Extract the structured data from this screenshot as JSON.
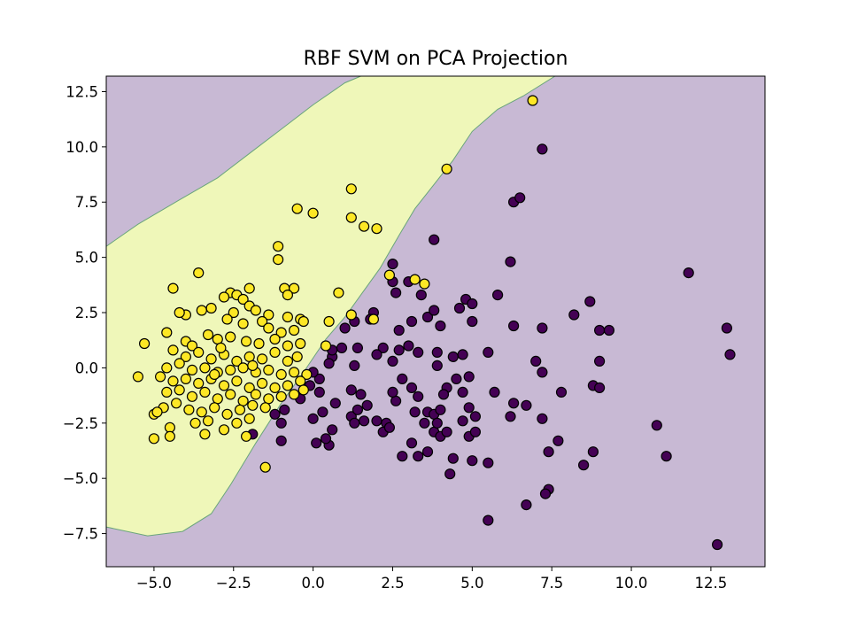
{
  "chart_data": {
    "type": "scatter",
    "title": "RBF SVM on PCA Projection",
    "xlabel": "",
    "ylabel": "",
    "xlim": [
      -6.5,
      14.2
    ],
    "ylim": [
      -9.0,
      13.2
    ],
    "x_ticks": [
      -5.0,
      -2.5,
      0.0,
      2.5,
      5.0,
      7.5,
      10.0,
      12.5
    ],
    "x_tick_labels": [
      "−5.0",
      "−2.5",
      "0.0",
      "2.5",
      "5.0",
      "7.5",
      "10.0",
      "12.5"
    ],
    "y_ticks": [
      -7.5,
      -5.0,
      -2.5,
      0.0,
      2.5,
      5.0,
      7.5,
      10.0,
      12.5
    ],
    "y_tick_labels": [
      "−7.5",
      "−5.0",
      "−2.5",
      "0.0",
      "2.5",
      "5.0",
      "7.5",
      "10.0",
      "12.5"
    ],
    "grid": false,
    "legend": "none",
    "colors": {
      "class_0": "#440154",
      "class_1": "#fde725",
      "region_0": "#c8b9d4",
      "region_1": "#eff7b9",
      "boundary": "#6aa57b",
      "marker_edge": "#000000"
    },
    "decision_boundary": [
      [
        -6.5,
        5.5
      ],
      [
        -5.5,
        6.5
      ],
      [
        -4.2,
        7.6
      ],
      [
        -3.0,
        8.6
      ],
      [
        -2.0,
        9.7
      ],
      [
        -1.0,
        10.8
      ],
      [
        0.0,
        11.9
      ],
      [
        1.0,
        12.9
      ],
      [
        1.5,
        13.2
      ],
      [
        7.6,
        13.2
      ],
      [
        6.6,
        12.3
      ],
      [
        5.8,
        11.7
      ],
      [
        5.0,
        10.7
      ],
      [
        4.4,
        9.4
      ],
      [
        3.8,
        8.3
      ],
      [
        3.2,
        7.2
      ],
      [
        2.7,
        6.0
      ],
      [
        2.1,
        4.5
      ],
      [
        1.5,
        3.3
      ],
      [
        1.0,
        2.3
      ],
      [
        0.4,
        1.3
      ],
      [
        -0.3,
        -0.2
      ],
      [
        -1.0,
        -1.6
      ],
      [
        -1.8,
        -3.4
      ],
      [
        -2.6,
        -5.3
      ],
      [
        -3.2,
        -6.6
      ],
      [
        -4.1,
        -7.4
      ],
      [
        -5.2,
        -7.6
      ],
      [
        -6.5,
        -7.2
      ]
    ],
    "series": [
      {
        "values": [
          [
            7.2,
            9.9
          ],
          [
            6.3,
            7.5
          ],
          [
            6.5,
            7.7
          ],
          [
            3.8,
            5.8
          ],
          [
            6.2,
            4.8
          ],
          [
            11.8,
            4.3
          ],
          [
            2.5,
            4.7
          ],
          [
            4.8,
            3.1
          ],
          [
            5.0,
            2.9
          ],
          [
            5.8,
            3.3
          ],
          [
            8.2,
            2.4
          ],
          [
            8.7,
            3.0
          ],
          [
            13.0,
            1.8
          ],
          [
            13.1,
            0.6
          ],
          [
            9.0,
            1.7
          ],
          [
            9.3,
            1.7
          ],
          [
            7.2,
            1.8
          ],
          [
            6.3,
            1.9
          ],
          [
            12.7,
            -8.0
          ],
          [
            10.8,
            -2.6
          ],
          [
            11.1,
            -4.0
          ],
          [
            8.5,
            -4.4
          ],
          [
            8.8,
            -3.8
          ],
          [
            7.4,
            -3.8
          ],
          [
            7.7,
            -3.3
          ],
          [
            7.4,
            -5.5
          ],
          [
            7.3,
            -5.7
          ],
          [
            6.7,
            -6.2
          ],
          [
            5.5,
            -6.9
          ],
          [
            5.5,
            -4.3
          ],
          [
            5.0,
            -4.2
          ],
          [
            4.3,
            -4.8
          ],
          [
            4.4,
            -4.1
          ],
          [
            2.8,
            -4.0
          ],
          [
            3.3,
            -4.0
          ],
          [
            3.6,
            -3.8
          ],
          [
            3.1,
            -3.4
          ],
          [
            3.8,
            -2.9
          ],
          [
            4.0,
            -3.1
          ],
          [
            4.9,
            -3.1
          ],
          [
            5.1,
            -2.9
          ],
          [
            5.1,
            -2.2
          ],
          [
            6.2,
            -2.2
          ],
          [
            6.3,
            -1.6
          ],
          [
            6.7,
            -1.7
          ],
          [
            7.2,
            -2.3
          ],
          [
            5.7,
            -1.1
          ],
          [
            7.8,
            -1.1
          ],
          [
            8.8,
            -0.8
          ],
          [
            9.0,
            -0.9
          ],
          [
            9.0,
            0.3
          ],
          [
            7.0,
            0.3
          ],
          [
            7.2,
            -0.2
          ],
          [
            5.5,
            0.7
          ],
          [
            4.7,
            0.6
          ],
          [
            3.9,
            0.7
          ],
          [
            3.9,
            0.1
          ],
          [
            4.4,
            0.5
          ],
          [
            4.9,
            -0.4
          ],
          [
            4.2,
            -0.9
          ],
          [
            3.3,
            0.7
          ],
          [
            2.7,
            0.8
          ],
          [
            2.5,
            0.3
          ],
          [
            2.2,
            0.9
          ],
          [
            3.0,
            1.0
          ],
          [
            2.7,
            1.7
          ],
          [
            3.1,
            2.1
          ],
          [
            3.6,
            2.3
          ],
          [
            4.0,
            1.9
          ],
          [
            4.6,
            2.7
          ],
          [
            5.0,
            2.1
          ],
          [
            3.8,
            2.6
          ],
          [
            3.4,
            3.3
          ],
          [
            2.6,
            3.4
          ],
          [
            3.0,
            3.9
          ],
          [
            2.5,
            3.9
          ],
          [
            1.9,
            2.5
          ],
          [
            1.8,
            2.2
          ],
          [
            1.0,
            1.8
          ],
          [
            1.3,
            2.1
          ],
          [
            0.9,
            0.9
          ],
          [
            1.4,
            0.9
          ],
          [
            1.3,
            0.1
          ],
          [
            2.0,
            0.6
          ],
          [
            0.6,
            0.5
          ],
          [
            0.6,
            0.8
          ],
          [
            0.5,
            0.2
          ],
          [
            0.2,
            -0.5
          ],
          [
            0.0,
            -0.2
          ],
          [
            -0.1,
            -0.8
          ],
          [
            -0.4,
            -1.4
          ],
          [
            -0.9,
            -1.9
          ],
          [
            -1.2,
            -2.1
          ],
          [
            -1.0,
            -2.5
          ],
          [
            -1.9,
            -3.0
          ],
          [
            -1.0,
            -3.3
          ],
          [
            0.1,
            -3.4
          ],
          [
            0.5,
            -3.5
          ],
          [
            0.4,
            -3.2
          ],
          [
            0.6,
            -2.8
          ],
          [
            0.0,
            -2.3
          ],
          [
            0.3,
            -2.0
          ],
          [
            0.2,
            -1.1
          ],
          [
            0.7,
            -1.6
          ],
          [
            1.2,
            -2.2
          ],
          [
            1.4,
            -1.9
          ],
          [
            1.7,
            -1.7
          ],
          [
            1.5,
            -1.2
          ],
          [
            1.2,
            -1.0
          ],
          [
            1.6,
            -2.4
          ],
          [
            1.3,
            -2.5
          ],
          [
            2.0,
            -2.4
          ],
          [
            2.3,
            -2.5
          ],
          [
            2.2,
            -2.9
          ],
          [
            2.4,
            -2.7
          ],
          [
            2.6,
            -1.5
          ],
          [
            2.5,
            -1.1
          ],
          [
            2.8,
            -0.5
          ],
          [
            3.1,
            -0.9
          ],
          [
            3.3,
            -1.3
          ],
          [
            3.2,
            -2.0
          ],
          [
            3.5,
            -2.5
          ],
          [
            3.6,
            -2.0
          ],
          [
            3.8,
            -2.1
          ],
          [
            4.0,
            -1.9
          ],
          [
            4.1,
            -1.2
          ],
          [
            4.5,
            -0.5
          ],
          [
            4.7,
            -1.1
          ],
          [
            4.9,
            -1.8
          ],
          [
            4.7,
            -2.4
          ],
          [
            3.9,
            -2.5
          ],
          [
            4.2,
            -2.9
          ]
        ]
      },
      {
        "values": [
          [
            6.9,
            12.1
          ],
          [
            4.2,
            9.0
          ],
          [
            1.2,
            8.1
          ],
          [
            -0.5,
            7.2
          ],
          [
            0.0,
            7.0
          ],
          [
            1.2,
            6.8
          ],
          [
            1.6,
            6.4
          ],
          [
            2.0,
            6.3
          ],
          [
            -1.1,
            5.5
          ],
          [
            -1.1,
            4.9
          ],
          [
            -3.6,
            4.3
          ],
          [
            -4.4,
            3.6
          ],
          [
            -2.0,
            3.6
          ],
          [
            -0.9,
            3.6
          ],
          [
            -0.6,
            3.6
          ],
          [
            -0.8,
            3.3
          ],
          [
            0.8,
            3.4
          ],
          [
            2.4,
            4.2
          ],
          [
            3.2,
            4.0
          ],
          [
            3.5,
            3.8
          ],
          [
            -2.6,
            3.4
          ],
          [
            -2.4,
            3.3
          ],
          [
            -2.2,
            3.1
          ],
          [
            -2.8,
            3.2
          ],
          [
            -3.2,
            2.7
          ],
          [
            -3.5,
            2.6
          ],
          [
            -4.0,
            2.4
          ],
          [
            -4.2,
            2.5
          ],
          [
            -2.0,
            2.8
          ],
          [
            -1.8,
            2.6
          ],
          [
            -1.4,
            2.4
          ],
          [
            -0.8,
            2.3
          ],
          [
            -0.4,
            2.2
          ],
          [
            -0.3,
            2.1
          ],
          [
            0.5,
            2.1
          ],
          [
            1.2,
            2.4
          ],
          [
            1.9,
            2.2
          ],
          [
            -2.5,
            2.5
          ],
          [
            -2.7,
            2.2
          ],
          [
            -2.2,
            2.0
          ],
          [
            -1.6,
            2.1
          ],
          [
            -1.4,
            1.8
          ],
          [
            -1.0,
            1.6
          ],
          [
            -0.6,
            1.7
          ],
          [
            -4.6,
            1.6
          ],
          [
            -5.3,
            1.1
          ],
          [
            -4.0,
            1.2
          ],
          [
            -3.8,
            1.0
          ],
          [
            -3.3,
            1.5
          ],
          [
            -3.0,
            1.3
          ],
          [
            -2.6,
            1.4
          ],
          [
            -2.1,
            1.2
          ],
          [
            -1.7,
            1.1
          ],
          [
            -1.2,
            1.3
          ],
          [
            -0.8,
            1.0
          ],
          [
            -0.4,
            1.1
          ],
          [
            0.4,
            1.0
          ],
          [
            -4.4,
            0.8
          ],
          [
            -4.0,
            0.5
          ],
          [
            -3.6,
            0.7
          ],
          [
            -3.2,
            0.4
          ],
          [
            -2.8,
            0.6
          ],
          [
            -2.4,
            0.3
          ],
          [
            -2.0,
            0.5
          ],
          [
            -1.6,
            0.4
          ],
          [
            -1.2,
            0.7
          ],
          [
            -0.8,
            0.3
          ],
          [
            -0.5,
            0.5
          ],
          [
            -4.6,
            0.0
          ],
          [
            -4.2,
            0.2
          ],
          [
            -3.8,
            -0.1
          ],
          [
            -3.4,
            0.0
          ],
          [
            -3.0,
            -0.2
          ],
          [
            -2.6,
            -0.1
          ],
          [
            -2.2,
            0.0
          ],
          [
            -1.8,
            -0.2
          ],
          [
            -1.4,
            -0.1
          ],
          [
            -1.0,
            -0.3
          ],
          [
            -0.6,
            -0.2
          ],
          [
            -0.2,
            -0.3
          ],
          [
            -5.5,
            -0.4
          ],
          [
            -4.8,
            -0.4
          ],
          [
            -4.4,
            -0.6
          ],
          [
            -4.0,
            -0.5
          ],
          [
            -3.6,
            -0.7
          ],
          [
            -3.2,
            -0.5
          ],
          [
            -2.8,
            -0.8
          ],
          [
            -2.4,
            -0.6
          ],
          [
            -2.0,
            -0.9
          ],
          [
            -1.6,
            -0.7
          ],
          [
            -1.2,
            -0.9
          ],
          [
            -0.8,
            -0.8
          ],
          [
            -0.4,
            -0.6
          ],
          [
            -4.6,
            -1.1
          ],
          [
            -4.2,
            -1.0
          ],
          [
            -3.8,
            -1.3
          ],
          [
            -3.4,
            -1.1
          ],
          [
            -3.0,
            -1.4
          ],
          [
            -2.6,
            -1.2
          ],
          [
            -2.2,
            -1.5
          ],
          [
            -1.8,
            -1.2
          ],
          [
            -1.4,
            -1.4
          ],
          [
            -1.0,
            -1.3
          ],
          [
            -0.6,
            -1.2
          ],
          [
            -4.7,
            -1.8
          ],
          [
            -4.3,
            -1.6
          ],
          [
            -3.9,
            -1.9
          ],
          [
            -3.5,
            -2.0
          ],
          [
            -3.1,
            -1.8
          ],
          [
            -2.7,
            -2.1
          ],
          [
            -2.3,
            -1.9
          ],
          [
            -1.9,
            -1.7
          ],
          [
            -1.5,
            -1.8
          ],
          [
            -5.0,
            -2.1
          ],
          [
            -4.9,
            -2.0
          ],
          [
            -4.5,
            -2.7
          ],
          [
            -4.5,
            -3.1
          ],
          [
            -5.0,
            -3.2
          ],
          [
            -3.7,
            -2.5
          ],
          [
            -3.3,
            -2.4
          ],
          [
            -3.4,
            -3.0
          ],
          [
            -2.8,
            -2.8
          ],
          [
            -2.4,
            -2.5
          ],
          [
            -2.0,
            -2.3
          ],
          [
            -2.1,
            -3.1
          ],
          [
            -1.5,
            -4.5
          ],
          [
            -3.1,
            -0.3
          ],
          [
            -2.9,
            0.9
          ],
          [
            -1.9,
            0.1
          ],
          [
            -0.3,
            -1.0
          ]
        ]
      }
    ]
  }
}
